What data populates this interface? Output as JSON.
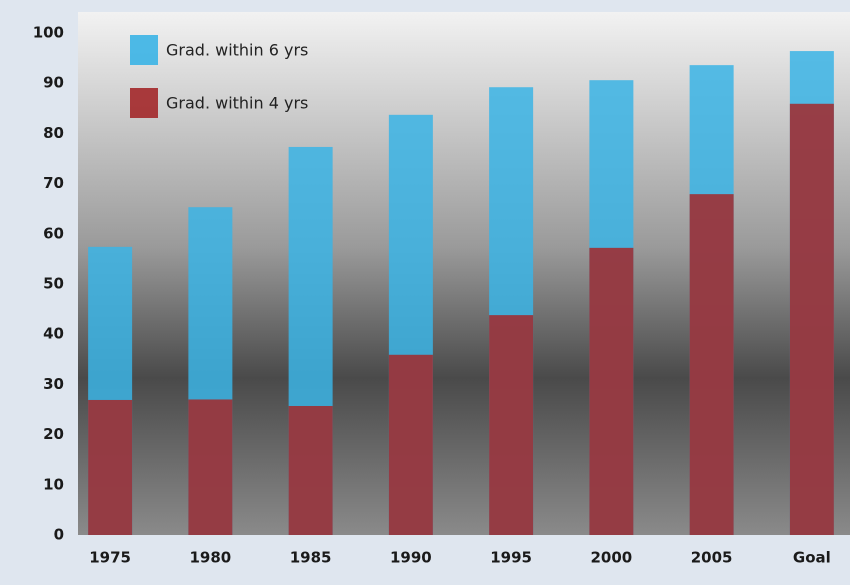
{
  "chart_data": {
    "type": "bar",
    "categories": [
      "1975",
      "1980",
      "1985",
      "1990",
      "1995",
      "2000",
      "2005",
      "Goal"
    ],
    "series": [
      {
        "name": "Grad. within 6 yrs",
        "color": "#3bb4e5",
        "values": [
          57.4,
          65.3,
          77.3,
          83.7,
          89.2,
          90.6,
          93.6,
          96.4
        ]
      },
      {
        "name": "Grad. within 4 yrs",
        "color": "#a3282a",
        "values": [
          26.9,
          27,
          25.7,
          35.9,
          43.8,
          57.2,
          67.9,
          85.9
        ]
      }
    ],
    "ylim": [
      0,
      100
    ],
    "yticks": [
      0,
      10,
      20,
      30,
      40,
      50,
      60,
      70,
      80,
      90,
      100
    ],
    "grid": false
  }
}
